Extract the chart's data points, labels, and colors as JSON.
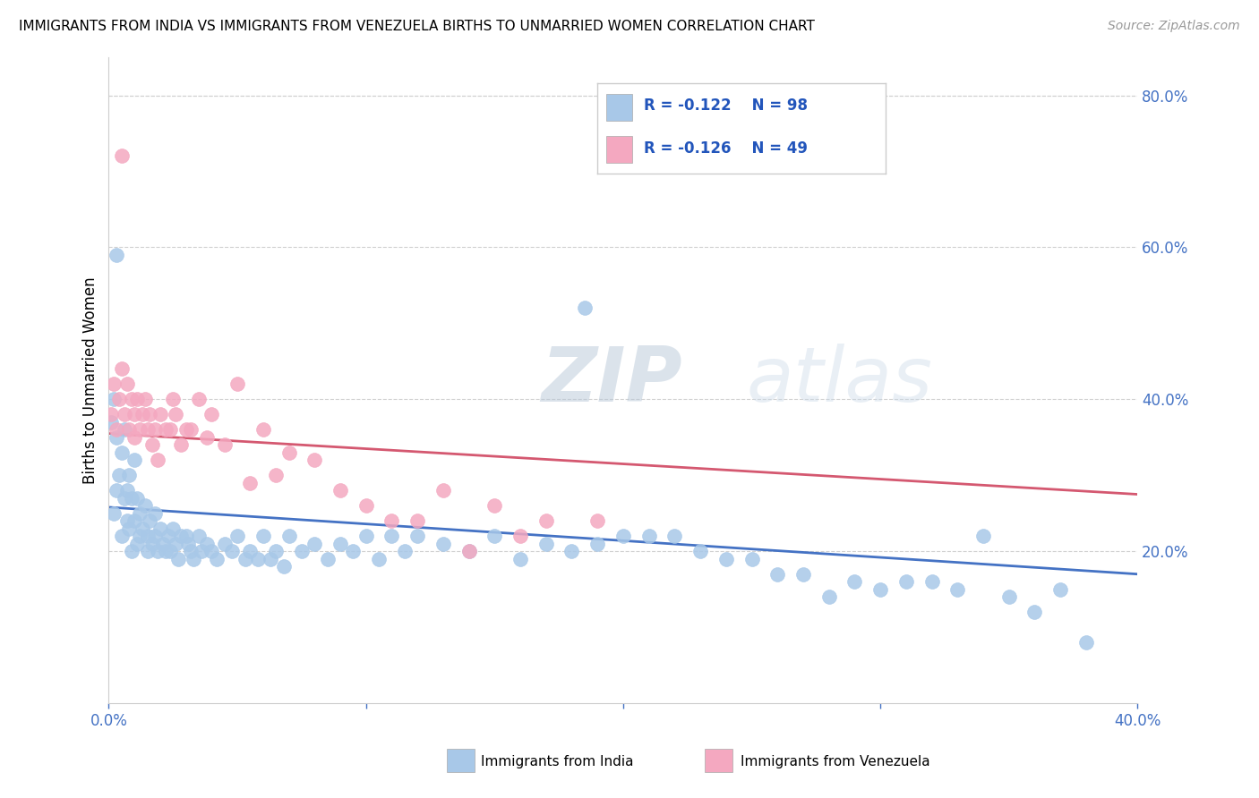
{
  "title": "IMMIGRANTS FROM INDIA VS IMMIGRANTS FROM VENEZUELA BIRTHS TO UNMARRIED WOMEN CORRELATION CHART",
  "source": "Source: ZipAtlas.com",
  "ylabel": "Births to Unmarried Women",
  "xlim": [
    0.0,
    0.4
  ],
  "ylim": [
    0.0,
    0.85
  ],
  "xticks": [
    0.0,
    0.1,
    0.2,
    0.3,
    0.4
  ],
  "xtick_labels": [
    "0.0%",
    "",
    "",
    "",
    "40.0%"
  ],
  "yticks_right": [
    0.2,
    0.4,
    0.6,
    0.8
  ],
  "india_color": "#a8c8e8",
  "india_line_color": "#4472c4",
  "venezuela_color": "#f4a8c0",
  "venezuela_line_color": "#d45870",
  "legend_text_color": "#2255bb",
  "india_R": "-0.122",
  "india_N": "98",
  "venezuela_R": "-0.126",
  "venezuela_N": "49",
  "india_intercept": 0.258,
  "india_slope": -0.22,
  "venezuela_intercept": 0.355,
  "venezuela_slope": -0.2,
  "india_x": [
    0.001,
    0.002,
    0.002,
    0.003,
    0.003,
    0.004,
    0.005,
    0.005,
    0.006,
    0.006,
    0.007,
    0.007,
    0.008,
    0.008,
    0.009,
    0.009,
    0.01,
    0.01,
    0.011,
    0.011,
    0.012,
    0.012,
    0.013,
    0.014,
    0.015,
    0.015,
    0.016,
    0.017,
    0.018,
    0.018,
    0.019,
    0.02,
    0.021,
    0.022,
    0.023,
    0.024,
    0.025,
    0.026,
    0.027,
    0.028,
    0.03,
    0.031,
    0.032,
    0.033,
    0.035,
    0.036,
    0.038,
    0.04,
    0.042,
    0.045,
    0.048,
    0.05,
    0.053,
    0.055,
    0.058,
    0.06,
    0.063,
    0.065,
    0.068,
    0.07,
    0.075,
    0.08,
    0.085,
    0.09,
    0.095,
    0.1,
    0.105,
    0.11,
    0.115,
    0.12,
    0.13,
    0.14,
    0.15,
    0.16,
    0.17,
    0.18,
    0.19,
    0.2,
    0.21,
    0.22,
    0.23,
    0.24,
    0.25,
    0.26,
    0.27,
    0.28,
    0.29,
    0.3,
    0.31,
    0.32,
    0.33,
    0.34,
    0.35,
    0.36,
    0.37,
    0.38,
    0.003,
    0.185
  ],
  "india_y": [
    0.37,
    0.25,
    0.4,
    0.28,
    0.35,
    0.3,
    0.33,
    0.22,
    0.27,
    0.36,
    0.28,
    0.24,
    0.3,
    0.23,
    0.27,
    0.2,
    0.32,
    0.24,
    0.27,
    0.21,
    0.25,
    0.22,
    0.23,
    0.26,
    0.22,
    0.2,
    0.24,
    0.21,
    0.25,
    0.22,
    0.2,
    0.23,
    0.21,
    0.2,
    0.22,
    0.2,
    0.23,
    0.21,
    0.19,
    0.22,
    0.22,
    0.21,
    0.2,
    0.19,
    0.22,
    0.2,
    0.21,
    0.2,
    0.19,
    0.21,
    0.2,
    0.22,
    0.19,
    0.2,
    0.19,
    0.22,
    0.19,
    0.2,
    0.18,
    0.22,
    0.2,
    0.21,
    0.19,
    0.21,
    0.2,
    0.22,
    0.19,
    0.22,
    0.2,
    0.22,
    0.21,
    0.2,
    0.22,
    0.19,
    0.21,
    0.2,
    0.21,
    0.22,
    0.22,
    0.22,
    0.2,
    0.19,
    0.19,
    0.17,
    0.17,
    0.14,
    0.16,
    0.15,
    0.16,
    0.16,
    0.15,
    0.22,
    0.14,
    0.12,
    0.15,
    0.08,
    0.59,
    0.52
  ],
  "venezuela_x": [
    0.001,
    0.002,
    0.003,
    0.004,
    0.005,
    0.006,
    0.007,
    0.008,
    0.009,
    0.01,
    0.011,
    0.012,
    0.013,
    0.014,
    0.015,
    0.016,
    0.017,
    0.018,
    0.019,
    0.02,
    0.022,
    0.024,
    0.026,
    0.028,
    0.03,
    0.032,
    0.035,
    0.038,
    0.04,
    0.045,
    0.05,
    0.055,
    0.06,
    0.065,
    0.07,
    0.08,
    0.09,
    0.1,
    0.11,
    0.12,
    0.13,
    0.14,
    0.15,
    0.16,
    0.17,
    0.19,
    0.005,
    0.01,
    0.025
  ],
  "venezuela_y": [
    0.38,
    0.42,
    0.36,
    0.4,
    0.44,
    0.38,
    0.42,
    0.36,
    0.4,
    0.38,
    0.4,
    0.36,
    0.38,
    0.4,
    0.36,
    0.38,
    0.34,
    0.36,
    0.32,
    0.38,
    0.36,
    0.36,
    0.38,
    0.34,
    0.36,
    0.36,
    0.4,
    0.35,
    0.38,
    0.34,
    0.42,
    0.29,
    0.36,
    0.3,
    0.33,
    0.32,
    0.28,
    0.26,
    0.24,
    0.24,
    0.28,
    0.2,
    0.26,
    0.22,
    0.24,
    0.24,
    0.72,
    0.35,
    0.4
  ]
}
